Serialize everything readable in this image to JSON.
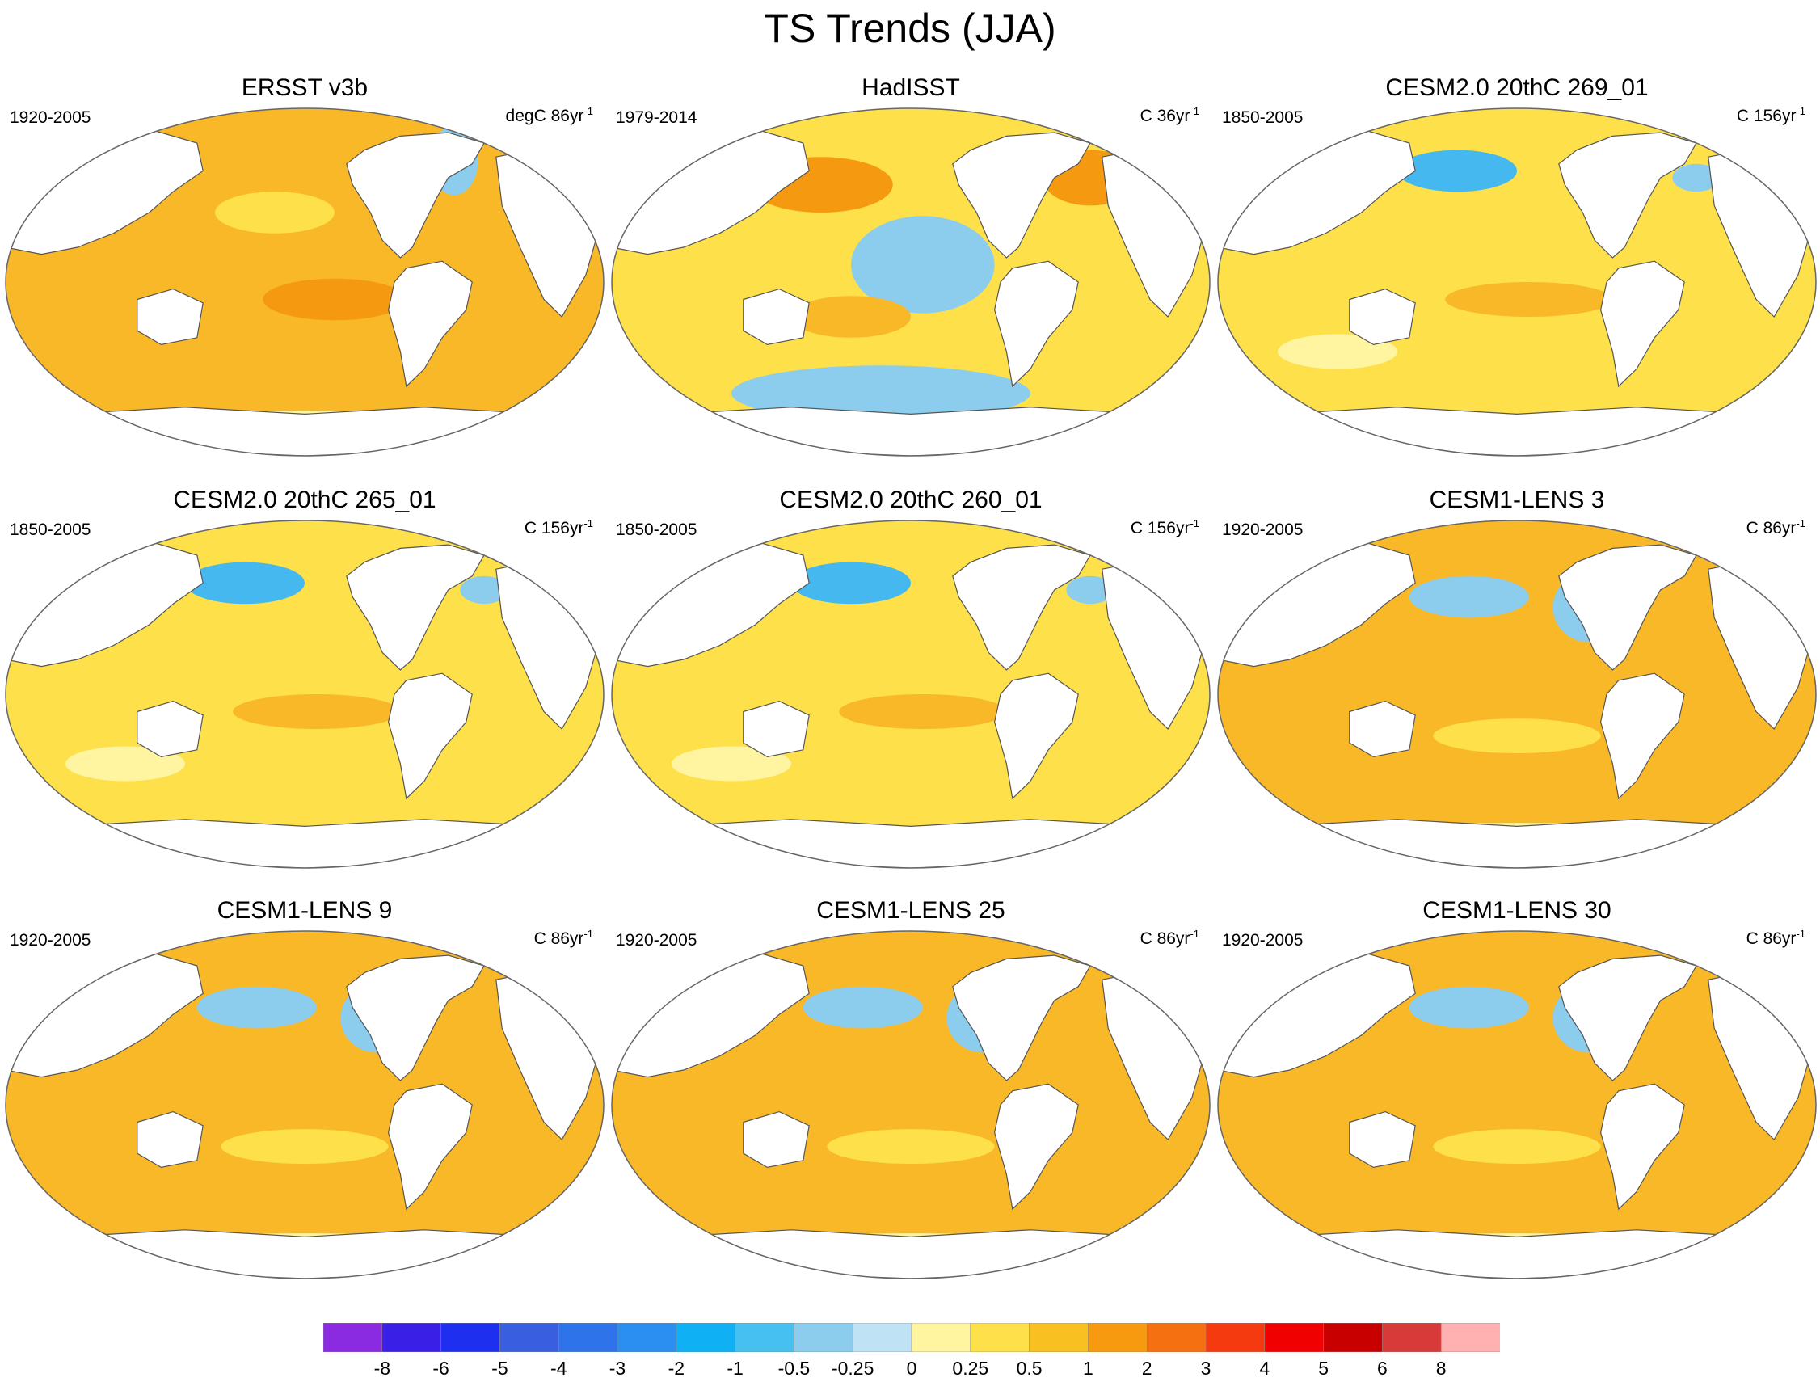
{
  "title": "TS Trends (JJA)",
  "panels": [
    {
      "title": "ERSST v3b",
      "period": "1920-2005",
      "units_prefix": "degC 86yr",
      "units_exp": "-1",
      "pattern": "warm"
    },
    {
      "title": "HadISST",
      "period": "1979-2014",
      "units_prefix": "C 36yr",
      "units_exp": "-1",
      "pattern": "mixed"
    },
    {
      "title": "CESM2.0 20thC 269_01",
      "period": "1850-2005",
      "units_prefix": "C 156yr",
      "units_exp": "-1",
      "pattern": "npcool"
    },
    {
      "title": "CESM2.0 20thC 265_01",
      "period": "1850-2005",
      "units_prefix": "C 156yr",
      "units_exp": "-1",
      "pattern": "npcool"
    },
    {
      "title": "CESM2.0 20thC 260_01",
      "period": "1850-2005",
      "units_prefix": "C 156yr",
      "units_exp": "-1",
      "pattern": "npcool"
    },
    {
      "title": "CESM1-LENS 3",
      "period": "1920-2005",
      "units_prefix": "C 86yr",
      "units_exp": "-1",
      "pattern": "lens"
    },
    {
      "title": "CESM1-LENS 9",
      "period": "1920-2005",
      "units_prefix": "C 86yr",
      "units_exp": "-1",
      "pattern": "lens"
    },
    {
      "title": "CESM1-LENS 25",
      "period": "1920-2005",
      "units_prefix": "C 86yr",
      "units_exp": "-1",
      "pattern": "lens"
    },
    {
      "title": "CESM1-LENS 30",
      "period": "1920-2005",
      "units_prefix": "C 86yr",
      "units_exp": "-1",
      "pattern": "lens"
    }
  ],
  "colorbar": {
    "levels": [
      "-8",
      "-6",
      "-5",
      "-4",
      "-3",
      "-2",
      "-1",
      "-0.5",
      "-0.25",
      "0",
      "0.25",
      "0.5",
      "1",
      "2",
      "3",
      "4",
      "5",
      "6",
      "8"
    ],
    "colors": [
      "#8a2be2",
      "#3a1fe6",
      "#1f2ff0",
      "#3a5ee0",
      "#2f73ea",
      "#2a8ff0",
      "#10b0f5",
      "#45c0f0",
      "#8ccdee",
      "#bfe3f5",
      "#fff5a0",
      "#fde04a",
      "#f8c020",
      "#f89a10",
      "#f57010",
      "#f53a10",
      "#f00000",
      "#c80000",
      "#d83a3a",
      "#ffb0b0"
    ]
  },
  "palette": {
    "ocean_warm": "#f8b828",
    "ocean_mild": "#fde04a",
    "ocean_pale": "#fff5a0",
    "ocean_cool": "#8ccdee",
    "ocean_cold": "#45b8f0",
    "ocean_hot": "#f59a10",
    "land": "#ffffff",
    "coast": "#555555"
  }
}
